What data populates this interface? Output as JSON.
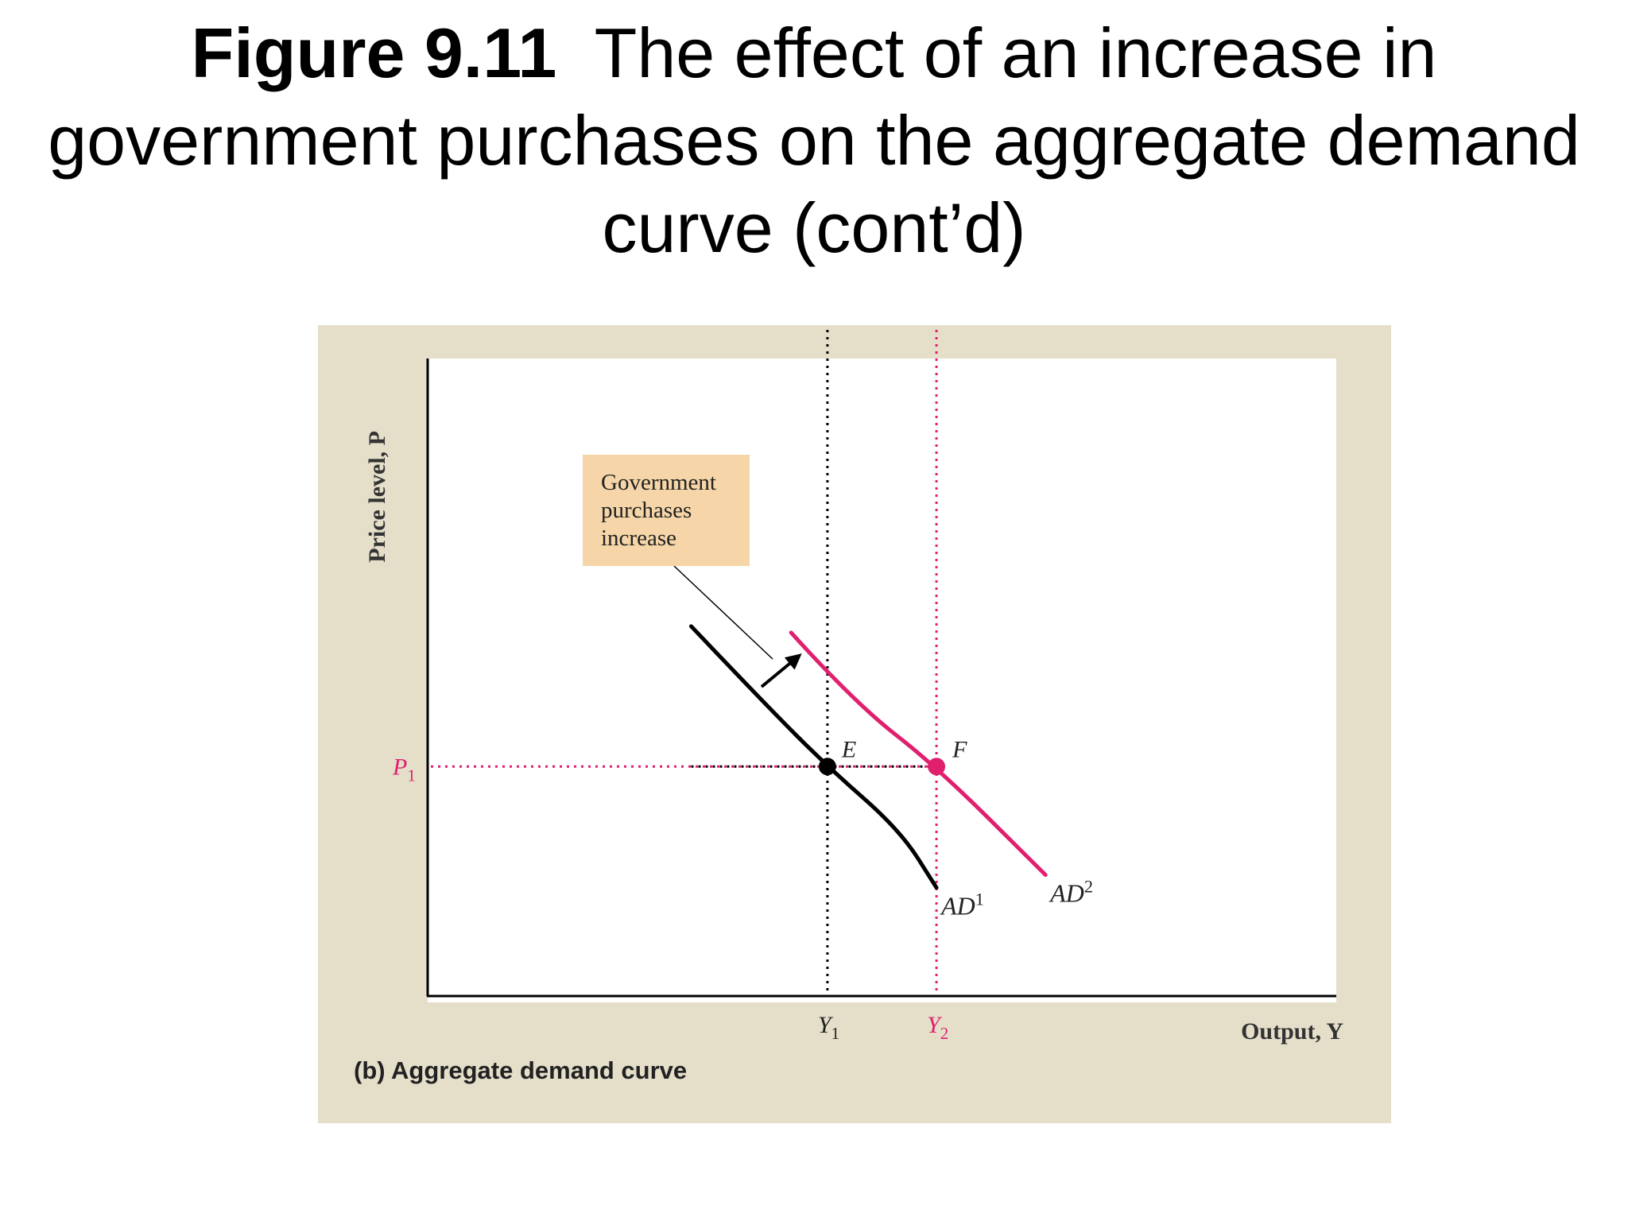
{
  "slide": {
    "title_bold": "Figure 9.11",
    "title_rest": "The effect of an increase in government purchases on the aggregate demand curve (cont’d)"
  },
  "chart_data": {
    "type": "line",
    "caption": "(b) Aggregate demand curve",
    "ylabel": "Price level, P",
    "xlabel": "Output, Y",
    "xlim": [
      0,
      100
    ],
    "ylim": [
      0,
      100
    ],
    "series": [
      {
        "name": "AD1",
        "label_base": "AD",
        "label_sup": "1",
        "color": "#000000",
        "x": [
          29,
          37,
          44,
          52,
          56
        ],
        "y": [
          58,
          46,
          36,
          26,
          17
        ]
      },
      {
        "name": "AD2",
        "label_base": "AD",
        "label_sup": "2",
        "color": "#e0206e",
        "x": [
          40,
          47,
          56,
          68
        ],
        "y": [
          57,
          46,
          36,
          19
        ]
      }
    ],
    "points": [
      {
        "label": "E",
        "x": 44,
        "y": 36,
        "color": "#000000"
      },
      {
        "label": "F",
        "x": 56,
        "y": 36,
        "color": "#e0206e"
      }
    ],
    "reference_lines": {
      "horizontal": [
        {
          "label_base": "P",
          "label_sub": "1",
          "y": 36,
          "color": "#e0206e"
        }
      ],
      "vertical": [
        {
          "label_base": "Y",
          "label_sub": "1",
          "x": 44,
          "color": "#000000"
        },
        {
          "label_base": "Y",
          "label_sub": "2",
          "x": 56,
          "color": "#e0206e"
        }
      ]
    },
    "annotation": {
      "lines": [
        "Government",
        "purchases",
        "increase"
      ],
      "arrow": "shift right from AD1 toward AD2"
    }
  },
  "colors": {
    "panel_background": "#e5dfca",
    "plot_background": "#ffffff",
    "callout_background": "#f6d6a8",
    "accent": "#e0206e"
  }
}
